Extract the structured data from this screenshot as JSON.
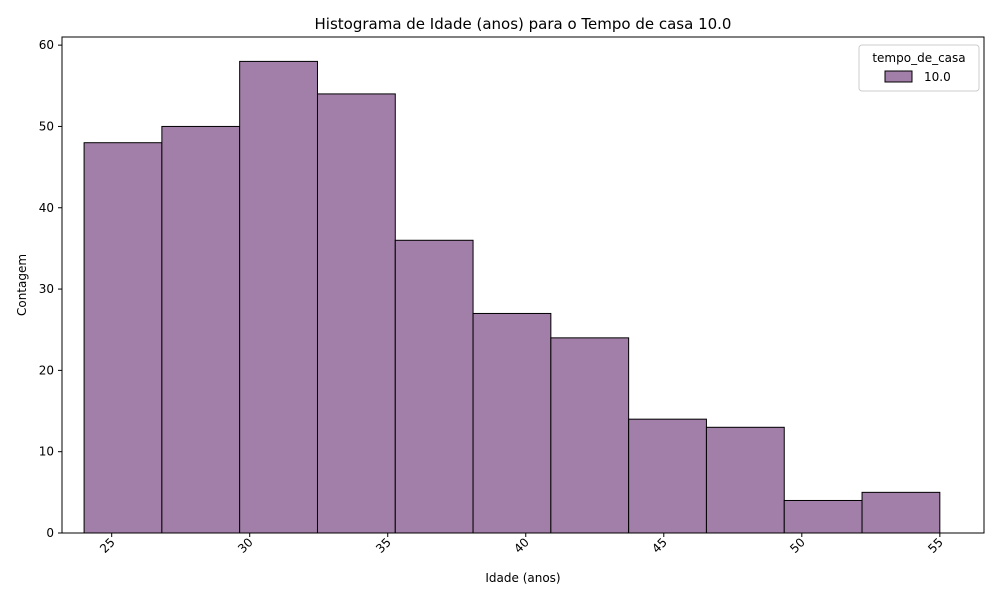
{
  "chart_data": {
    "type": "bar",
    "title": "Histograma de Idade (anos) para o Tempo de casa 10.0",
    "xlabel": "Idade (anos)",
    "ylabel": "Contagem",
    "bin_edges": [
      24.0,
      26.818,
      29.636,
      32.455,
      35.273,
      38.091,
      40.909,
      43.727,
      46.545,
      49.364,
      52.182,
      55.0
    ],
    "values": [
      48,
      50,
      58,
      54,
      36,
      27,
      24,
      14,
      13,
      4,
      5
    ],
    "xlim": [
      23.2,
      56.6
    ],
    "ylim": [
      0,
      61
    ],
    "xticks": [
      25,
      30,
      35,
      40,
      45,
      50,
      55
    ],
    "yticks": [
      0,
      10,
      20,
      30,
      40,
      50,
      60
    ],
    "bar_color": "#A27FA8",
    "edge_color": "#000000",
    "grid": false,
    "legend": {
      "title": "tempo_de_casa",
      "entries": [
        "10.0"
      ],
      "placement": "top-right"
    }
  }
}
